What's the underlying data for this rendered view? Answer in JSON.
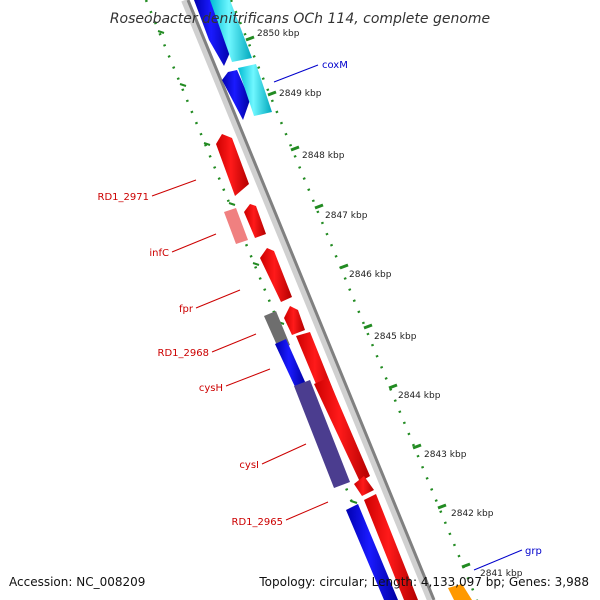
{
  "title": "Roseobacter denitrificans OCh 114, complete genome",
  "footer": {
    "accession": "Accession: NC_008209",
    "topology": "Topology: circular; Length: 4,133,097 bp; Genes: 3,988"
  },
  "ticks": [
    {
      "label": "2850 kbp"
    },
    {
      "label": "2849 kbp"
    },
    {
      "label": "2848 kbp"
    },
    {
      "label": "2847 kbp"
    },
    {
      "label": "2846 kbp"
    },
    {
      "label": "2845 kbp"
    },
    {
      "label": "2844 kbp"
    },
    {
      "label": "2843 kbp"
    },
    {
      "label": "2842 kbp"
    },
    {
      "label": "2841 kbp"
    }
  ],
  "gene_labels": [
    {
      "name": "coxM",
      "color": "#0000cc"
    },
    {
      "name": "RD1_2971",
      "color": "#cc0000"
    },
    {
      "name": "infC",
      "color": "#cc0000"
    },
    {
      "name": "fpr",
      "color": "#cc0000"
    },
    {
      "name": "RD1_2968",
      "color": "#cc0000"
    },
    {
      "name": "cysH",
      "color": "#cc0000"
    },
    {
      "name": "cysI",
      "color": "#cc0000"
    },
    {
      "name": "RD1_2965",
      "color": "#cc0000"
    },
    {
      "name": "grp",
      "color": "#0000cc"
    }
  ],
  "colors": {
    "forward_gene": "#ff0000",
    "reverse_gene": "#0000ff",
    "rna_gene": "#00e5ee",
    "tick_mark": "#228b22",
    "backbone": "#888888",
    "pseudo_gene": "#f08080",
    "other_gene": "#555555",
    "merged_gene": "#4b3d8f",
    "misc_gene": "#ff9900"
  }
}
